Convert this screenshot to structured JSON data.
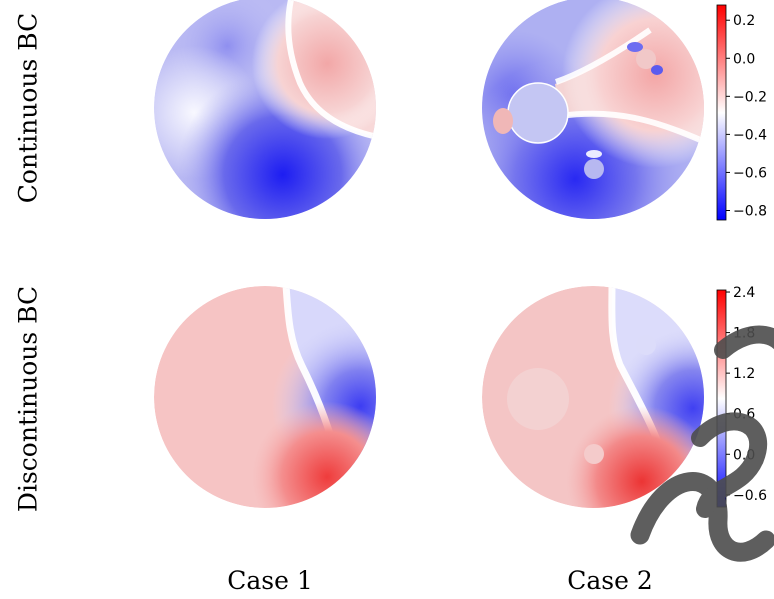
{
  "chart_data": {
    "type": "heatmap",
    "layout": "2x2 grid of circular domain field plots",
    "columns": [
      "Case 1",
      "Case 2"
    ],
    "rows": [
      "Continuous BC",
      "Discontinuous BC"
    ],
    "panels": [
      {
        "row": "Continuous BC",
        "column": "Case 1",
        "inclusions": 0,
        "field_range_estimate": [
          -0.8,
          0.2
        ],
        "description_values": {
          "upper_right_positive_region": 0.12,
          "lower_center_negative_region": -0.82,
          "upper_left_negative_region": -0.5
        }
      },
      {
        "row": "Continuous BC",
        "column": "Case 2",
        "inclusions": 3,
        "field_range_estimate": [
          -0.8,
          0.2
        ],
        "description_values": {
          "upper_right_positive_region": 0.18,
          "lower_left_negative_region": -0.78,
          "large_inclusion_value": -0.45,
          "small_inclusion_value": -0.55
        }
      },
      {
        "row": "Discontinuous BC",
        "column": "Case 1",
        "inclusions": 0,
        "field_range_estimate": [
          -0.6,
          2.4
        ],
        "description_values": {
          "lower_right_edge_maximum": 2.3,
          "right_side_minimum": -0.55,
          "left_region_typical": 1.45
        }
      },
      {
        "row": "Discontinuous BC",
        "column": "Case 2",
        "inclusions": 3,
        "field_range_estimate": [
          -0.6,
          2.4
        ],
        "description_values": {
          "lower_right_edge_maximum": 2.4,
          "right_side_minimum": -0.6,
          "large_inclusion_value": 1.25,
          "small_inclusion_value": 1.2
        }
      }
    ],
    "colorbars": [
      {
        "row": "Continuous BC",
        "range": [
          -0.85,
          0.28
        ],
        "ticks": [
          0.2,
          0.0,
          -0.2,
          -0.4,
          -0.6,
          -0.8
        ],
        "tick_labels": [
          "0.2",
          "0.0",
          "−0.2",
          "−0.4",
          "−0.6",
          "−0.8"
        ],
        "colormap": "bwr"
      },
      {
        "row": "Discontinuous BC",
        "range": [
          -0.78,
          2.43
        ],
        "ticks": [
          2.4,
          1.8,
          1.2,
          0.6,
          0.0,
          -0.6
        ],
        "tick_labels": [
          "2.4",
          "1.8",
          "1.2",
          "0.6",
          "0.0",
          "−0.6"
        ],
        "colormap": "bwr"
      }
    ],
    "watermark": "usc"
  },
  "labels": {
    "row_continuous": "Continuous BC",
    "row_discontinuous": "Discontinuous BC",
    "col_case1": "Case 1",
    "col_case2": "Case 2"
  },
  "colors": {
    "blue": "#0000ff",
    "white": "#ffffff",
    "red": "#ff0000",
    "watermark": "#4d4d4d"
  }
}
